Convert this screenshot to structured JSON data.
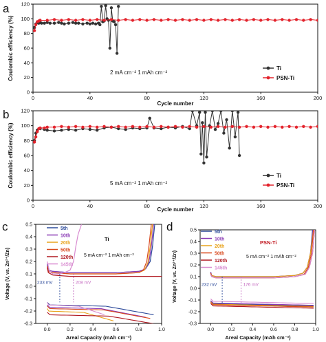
{
  "panels": [
    {
      "letter": "a",
      "chart_data": {
        "type": "line",
        "xlabel": "Cycle number",
        "ylabel": "Coulombic efficiency (%)",
        "xlim": [
          0,
          200
        ],
        "ylim": [
          0,
          120
        ],
        "xticks": [
          0,
          40,
          80,
          120,
          160,
          200
        ],
        "yticks": [
          0,
          20,
          40,
          60,
          80,
          100,
          120
        ],
        "annotation": "2 mA cm⁻²  1 mAh cm⁻²",
        "legend_position": "bottom-right",
        "series": [
          {
            "name": "Ti",
            "color": "#333333",
            "x": [
              1,
              2,
              3,
              4,
              5,
              6,
              8,
              10,
              12,
              15,
              18,
              20,
              22,
              25,
              28,
              30,
              32,
              35,
              38,
              40,
              42,
              44,
              46,
              47,
              48,
              49,
              50,
              51,
              52,
              53,
              54,
              55,
              56,
              57,
              58,
              59,
              60
            ],
            "y": [
              88,
              93,
              95,
              94,
              95,
              94,
              94,
              95,
              94,
              94,
              95,
              94,
              93,
              94,
              95,
              94,
              94,
              93,
              94,
              93,
              94,
              93,
              94,
              92,
              117,
              96,
              97,
              118,
              100,
              98,
              60,
              115,
              97,
              96,
              92,
              53,
              117
            ]
          },
          {
            "name": "PSN-Ti",
            "color": "#e3232c",
            "x": [
              1,
              2,
              3,
              4,
              5,
              10,
              15,
              20,
              25,
              30,
              35,
              40,
              45,
              50,
              55,
              60,
              65,
              70,
              75,
              80,
              85,
              90,
              95,
              100,
              105,
              110,
              115,
              120,
              125,
              130,
              135,
              140,
              145,
              150,
              155,
              160,
              165,
              170,
              175,
              180,
              185,
              190,
              195,
              200
            ],
            "y": [
              84,
              92,
              96,
              97,
              98,
              98,
              99,
              98,
              99,
              98,
              99,
              98,
              99,
              98,
              99,
              98,
              99,
              98,
              99,
              98,
              99,
              98,
              99,
              98,
              99,
              98,
              99,
              98,
              99,
              98,
              99,
              98,
              99,
              98,
              99,
              98,
              99,
              98,
              99,
              98,
              99,
              98,
              99,
              98
            ]
          }
        ]
      }
    },
    {
      "letter": "b",
      "chart_data": {
        "type": "line",
        "xlabel": "Cycle number",
        "ylabel": "Coulombic efficiency (%)",
        "xlim": [
          0,
          200
        ],
        "ylim": [
          0,
          120
        ],
        "xticks": [
          0,
          40,
          80,
          120,
          160,
          200
        ],
        "yticks": [
          0,
          20,
          40,
          60,
          80,
          100,
          120
        ],
        "annotation": "5 mA cm⁻²  1 mAh cm⁻²",
        "legend_position": "bottom-right",
        "series": [
          {
            "name": "Ti",
            "color": "#333333",
            "x": [
              1,
              2,
              3,
              5,
              8,
              10,
              15,
              20,
              25,
              30,
              35,
              40,
              45,
              50,
              55,
              60,
              65,
              70,
              75,
              80,
              82,
              85,
              90,
              95,
              100,
              105,
              110,
              112,
              115,
              117,
              118,
              119,
              120,
              121,
              122,
              124,
              126,
              128,
              130,
              132,
              134,
              136,
              138,
              140,
              142,
              144,
              145
            ],
            "y": [
              80,
              90,
              94,
              96,
              95,
              94,
              93,
              94,
              95,
              94,
              96,
              95,
              94,
              97,
              98,
              96,
              95,
              97,
              96,
              97,
              110,
              97,
              96,
              98,
              97,
              99,
              96,
              120,
              100,
              118,
              62,
              104,
              50,
              118,
              58,
              100,
              120,
              95,
              103,
              120,
              90,
              108,
              70,
              120,
              85,
              118,
              60
            ]
          },
          {
            "name": "PSN-Ti",
            "color": "#e3232c",
            "x": [
              1,
              2,
              3,
              4,
              5,
              8,
              10,
              15,
              20,
              25,
              30,
              35,
              40,
              45,
              50,
              55,
              60,
              65,
              70,
              75,
              80,
              85,
              90,
              95,
              100,
              105,
              110,
              115,
              120,
              125,
              130,
              135,
              140,
              145,
              150,
              155,
              160,
              165,
              170,
              175,
              180,
              185,
              190,
              195,
              200
            ],
            "y": [
              78,
              85,
              92,
              96,
              97,
              97,
              98,
              98,
              99,
              98,
              99,
              98,
              99,
              98,
              99,
              98,
              99,
              98,
              99,
              98,
              99,
              98,
              99,
              98,
              99,
              98,
              99,
              98,
              99,
              98,
              99,
              98,
              99,
              98,
              99,
              98,
              99,
              98,
              99,
              98,
              99,
              98,
              99,
              98,
              99
            ]
          }
        ]
      }
    },
    {
      "letter": "c",
      "chart_data": {
        "type": "line",
        "xlabel": "Areal Capacity (mAh cm⁻²)",
        "ylabel": "Voltage (V, vs. Zn²⁺/Zn)",
        "xlim": [
          -0.1,
          1.0
        ],
        "ylim": [
          -0.3,
          0.5
        ],
        "xticks": [
          0.0,
          0.2,
          0.4,
          0.6,
          0.8,
          1.0
        ],
        "yticks": [
          -0.3,
          -0.2,
          -0.1,
          0.0,
          0.1,
          0.2,
          0.3,
          0.4,
          0.5
        ],
        "title": "Ti",
        "annotation": "5 mA cm⁻²  1 mAh cm⁻²",
        "marker_labels": [
          "233 mV",
          "208 mV"
        ],
        "legend_position": "top-left",
        "series": [
          {
            "name": "5th",
            "color": "#2c4a9a",
            "x": [
              0.0,
              0.01,
              0.05,
              0.2,
              0.4,
              0.6,
              0.8,
              0.86,
              0.9,
              0.92,
              0.94
            ],
            "y": [
              0.18,
              0.13,
              0.12,
              0.11,
              0.11,
              0.11,
              0.12,
              0.14,
              0.2,
              0.32,
              0.5
            ]
          },
          {
            "name": "10th",
            "color": "#8a3ab5",
            "x": [
              0.0,
              0.01,
              0.05,
              0.2,
              0.4,
              0.6,
              0.8,
              0.86,
              0.89,
              0.91,
              0.93
            ],
            "y": [
              0.17,
              0.13,
              0.12,
              0.11,
              0.11,
              0.11,
              0.12,
              0.14,
              0.2,
              0.32,
              0.5
            ]
          },
          {
            "name": "20th",
            "color": "#e8a21a",
            "x": [
              0.0,
              0.01,
              0.05,
              0.2,
              0.4,
              0.6,
              0.8,
              0.85,
              0.88,
              0.9,
              0.92
            ],
            "y": [
              0.16,
              0.12,
              0.11,
              0.1,
              0.1,
              0.1,
              0.11,
              0.13,
              0.19,
              0.32,
              0.5
            ]
          },
          {
            "name": "50th",
            "color": "#d9481c",
            "x": [
              0.0,
              0.01,
              0.05,
              0.2,
              0.4,
              0.6,
              0.8,
              0.84,
              0.87,
              0.89,
              0.91
            ],
            "y": [
              0.16,
              0.12,
              0.11,
              0.1,
              0.1,
              0.1,
              0.11,
              0.13,
              0.2,
              0.33,
              0.5
            ]
          },
          {
            "name": "120th",
            "color": "#b01820",
            "x": [
              0.0,
              0.01,
              0.05,
              0.2,
              0.4,
              0.6,
              0.8,
              1.0
            ],
            "y": [
              0.15,
              0.11,
              0.09,
              0.08,
              0.08,
              0.08,
              0.08,
              0.08
            ]
          },
          {
            "name": "145th",
            "color": "#d88bd0",
            "x": [
              0.0,
              0.02,
              0.05,
              0.1,
              0.15,
              0.2,
              0.23,
              0.25,
              0.27,
              0.3
            ],
            "y": [
              0.2,
              0.12,
              0.1,
              0.1,
              0.11,
              0.13,
              0.2,
              0.32,
              0.42,
              0.5
            ]
          }
        ]
      }
    },
    {
      "letter": "d",
      "chart_data": {
        "type": "line",
        "xlabel": "Areal Capacity (mAh cm⁻²)",
        "ylabel": "Voltage (V, vs. Zn²⁺/Zn)",
        "xlim": [
          -0.1,
          1.0
        ],
        "ylim": [
          -0.3,
          0.5
        ],
        "xticks": [
          0.0,
          0.2,
          0.4,
          0.6,
          0.8,
          1.0
        ],
        "yticks": [
          -0.3,
          -0.2,
          -0.1,
          0.0,
          0.1,
          0.2,
          0.3,
          0.4,
          0.5
        ],
        "title": "PSN-Ti",
        "annotation": "5 mA cm⁻²  1 mAh cm⁻²",
        "marker_labels": [
          "232 mV",
          "176 mV"
        ],
        "legend_position": "top-left",
        "series": [
          {
            "name": "5th",
            "color": "#2c4a9a",
            "x": [
              0.0,
              0.01,
              0.05,
              0.2,
              0.4,
              0.6,
              0.8,
              0.88,
              0.92,
              0.95,
              0.97
            ],
            "y": [
              0.14,
              0.11,
              0.1,
              0.1,
              0.1,
              0.1,
              0.11,
              0.13,
              0.18,
              0.3,
              0.5
            ]
          },
          {
            "name": "10th",
            "color": "#8a3ab5",
            "x": [
              0.0,
              0.01,
              0.05,
              0.2,
              0.4,
              0.6,
              0.8,
              0.88,
              0.92,
              0.95,
              0.975
            ],
            "y": [
              0.14,
              0.11,
              0.1,
              0.1,
              0.1,
              0.1,
              0.11,
              0.13,
              0.18,
              0.3,
              0.5
            ]
          },
          {
            "name": "20th",
            "color": "#e8a21a",
            "x": [
              0.0,
              0.01,
              0.05,
              0.2,
              0.4,
              0.6,
              0.8,
              0.88,
              0.92,
              0.95,
              0.98
            ],
            "y": [
              0.13,
              0.11,
              0.1,
              0.1,
              0.1,
              0.1,
              0.11,
              0.13,
              0.18,
              0.3,
              0.5
            ]
          },
          {
            "name": "50th",
            "color": "#d9481c",
            "x": [
              0.0,
              0.01,
              0.05,
              0.2,
              0.4,
              0.6,
              0.8,
              0.89,
              0.93,
              0.96,
              0.98
            ],
            "y": [
              0.13,
              0.1,
              0.09,
              0.09,
              0.09,
              0.09,
              0.1,
              0.12,
              0.18,
              0.3,
              0.5
            ]
          },
          {
            "name": "120th",
            "color": "#b01820",
            "x": [
              0.0,
              0.01,
              0.05,
              0.2,
              0.4,
              0.6,
              0.8,
              0.9,
              0.94,
              0.97,
              0.99
            ],
            "y": [
              0.12,
              0.1,
              0.09,
              0.09,
              0.09,
              0.09,
              0.1,
              0.12,
              0.18,
              0.3,
              0.5
            ]
          },
          {
            "name": "145th",
            "color": "#d88bd0",
            "x": [
              0.0,
              0.01,
              0.05,
              0.2,
              0.4,
              0.6,
              0.8,
              0.9,
              0.94,
              0.97,
              0.99
            ],
            "y": [
              0.12,
              0.1,
              0.09,
              0.09,
              0.09,
              0.09,
              0.1,
              0.12,
              0.18,
              0.3,
              0.5
            ]
          }
        ]
      }
    }
  ]
}
